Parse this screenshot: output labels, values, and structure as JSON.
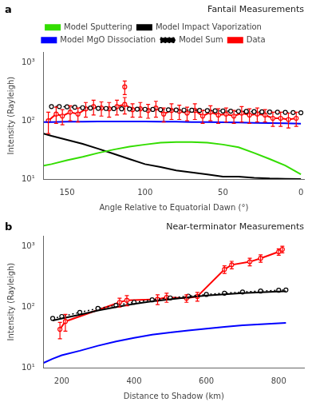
{
  "chart_data": [
    {
      "type": "line",
      "title": "Fantail Measurements",
      "xlabel": "Angle Relative to Equatorial Dawn (°)",
      "ylabel": "Intensity (Rayleigh)",
      "annotations": [
        "a"
      ],
      "xlim": [
        165,
        -2
      ],
      "ylim": [
        10,
        1500
      ],
      "xticks": [
        150,
        100,
        50,
        0
      ],
      "yticks": [
        {
          "value": 10,
          "label": "10¹"
        },
        {
          "value": 100,
          "label": "10²"
        },
        {
          "value": 1000,
          "label": "10³"
        }
      ],
      "log": "y",
      "grid": false,
      "legend": "top",
      "series": [
        {
          "name": "Model Sputtering",
          "color": "#33dd00",
          "line_style": "solid",
          "x": [
            165,
            160,
            150,
            140,
            130,
            120,
            110,
            100,
            90,
            80,
            70,
            60,
            50,
            40,
            30,
            20,
            10,
            0
          ],
          "values": [
            17,
            18,
            21,
            24,
            28,
            32,
            36,
            39,
            42,
            43,
            43,
            42,
            39,
            35,
            28,
            22,
            17,
            12
          ]
        },
        {
          "name": "Model Impact Vaporization",
          "color": "black",
          "line_style": "solid",
          "x": [
            165,
            160,
            150,
            140,
            130,
            120,
            110,
            100,
            90,
            80,
            70,
            60,
            50,
            40,
            30,
            20,
            10,
            0
          ],
          "values": [
            60,
            55,
            47,
            40,
            33,
            27,
            22,
            18,
            16,
            14,
            13,
            12,
            11,
            11,
            10.5,
            10.2,
            10.1,
            10.0
          ]
        },
        {
          "name": "Model MgO Dissociation",
          "color": "blue",
          "line_style": "solid",
          "x": [
            165,
            160,
            150,
            140,
            130,
            120,
            110,
            100,
            90,
            80,
            70,
            60,
            50,
            40,
            30,
            20,
            10,
            0
          ],
          "values": [
            95,
            95,
            96,
            96,
            97,
            97,
            97,
            97,
            96,
            96,
            95,
            95,
            94,
            93,
            92,
            91,
            90,
            89
          ]
        },
        {
          "name": "Model Sum",
          "color": "black",
          "line_style": "dotted",
          "marker": "circle",
          "x": [
            160,
            155,
            150,
            145,
            140,
            135,
            130,
            125,
            120,
            115,
            110,
            105,
            100,
            95,
            90,
            85,
            80,
            75,
            70,
            65,
            60,
            55,
            50,
            45,
            40,
            35,
            30,
            25,
            20,
            15,
            10,
            5,
            0
          ],
          "values": [
            175,
            175,
            173,
            170,
            167,
            165,
            163,
            162,
            161,
            160,
            159,
            158,
            157,
            156,
            155,
            154,
            153,
            152,
            151,
            150,
            149,
            148,
            147,
            146,
            145,
            144,
            143,
            142,
            141,
            140,
            139,
            138,
            137
          ]
        },
        {
          "name": "Data",
          "color": "red",
          "line_style": "solid",
          "marker": "circle",
          "x": [
            162,
            157,
            153,
            148,
            143,
            138,
            133,
            128,
            123,
            118,
            113,
            108,
            103,
            98,
            93,
            88,
            83,
            78,
            73,
            68,
            63,
            58,
            53,
            48,
            43,
            38,
            33,
            28,
            23,
            18,
            13,
            8,
            3
          ],
          "values": [
            100,
            130,
            120,
            140,
            130,
            160,
            175,
            165,
            160,
            175,
            190,
            155,
            160,
            150,
            165,
            130,
            150,
            145,
            135,
            150,
            120,
            140,
            125,
            130,
            120,
            135,
            125,
            130,
            125,
            110,
            110,
            105,
            110
          ],
          "yerr": [
            40,
            40,
            35,
            40,
            35,
            45,
            50,
            45,
            45,
            50,
            60,
            40,
            45,
            40,
            50,
            35,
            45,
            40,
            35,
            45,
            30,
            40,
            35,
            35,
            30,
            40,
            35,
            35,
            30,
            30,
            30,
            30,
            30
          ]
        },
        {
          "name": "Data",
          "color": "red",
          "line_style": "solid",
          "marker": "circle",
          "x": [
            113
          ],
          "values": [
            380
          ],
          "yerr": [
            100
          ]
        }
      ]
    },
    {
      "type": "line",
      "title": "Near-terminator Measurements",
      "xlabel": "Distance to Shadow (km)",
      "ylabel": "Intensity (Rayleigh)",
      "annotations": [
        "b"
      ],
      "xlim": [
        150,
        870
      ],
      "ylim": [
        10,
        1500
      ],
      "xticks": [
        200,
        400,
        600,
        800
      ],
      "yticks": [
        {
          "value": 10,
          "label": "10¹"
        },
        {
          "value": 100,
          "label": "10²"
        },
        {
          "value": 1000,
          "label": "10³"
        }
      ],
      "log": "y",
      "grid": false,
      "series": [
        {
          "name": "Model MgO Dissociation",
          "color": "blue",
          "line_style": "solid",
          "x": [
            150,
            175,
            200,
            250,
            300,
            350,
            400,
            450,
            500,
            550,
            600,
            650,
            700,
            750,
            800,
            820
          ],
          "values": [
            12,
            14,
            16,
            19,
            23,
            27,
            31,
            35,
            38,
            41,
            44,
            47,
            50,
            52,
            54,
            55
          ]
        },
        {
          "color": "black",
          "line_style": "solid",
          "x": [
            175,
            200,
            250,
            300,
            350,
            400,
            450,
            500,
            550,
            600,
            650,
            700,
            750,
            800,
            820
          ],
          "values": [
            60,
            65,
            75,
            88,
            100,
            113,
            125,
            135,
            145,
            155,
            163,
            170,
            176,
            181,
            183
          ]
        },
        {
          "name": "Model Sum",
          "color": "black",
          "line_style": "dotted",
          "marker": "circle",
          "x": [
            175,
            200,
            250,
            300,
            350,
            400,
            450,
            500,
            550,
            600,
            650,
            700,
            750,
            800,
            820
          ],
          "values": [
            65,
            70,
            82,
            95,
            107,
            120,
            132,
            142,
            152,
            162,
            170,
            178,
            184,
            190,
            192
          ]
        },
        {
          "name": "Data",
          "color": "red",
          "line_style": "solid",
          "marker": "circle",
          "x": [
            195,
            210,
            360,
            380,
            465,
            490,
            545,
            575,
            650,
            670,
            720,
            750,
            800,
            810
          ],
          "values": [
            43,
            58,
            120,
            130,
            135,
            145,
            140,
            150,
            420,
            500,
            560,
            640,
            820,
            900
          ],
          "yerr_lo": [
            13,
            18,
            20,
            25,
            25,
            25,
            20,
            25,
            60,
            70,
            80,
            90,
            100,
            110
          ],
          "yerr_hi": [
            13,
            18,
            20,
            25,
            25,
            25,
            20,
            25,
            60,
            70,
            80,
            90,
            100,
            110
          ]
        }
      ]
    }
  ]
}
